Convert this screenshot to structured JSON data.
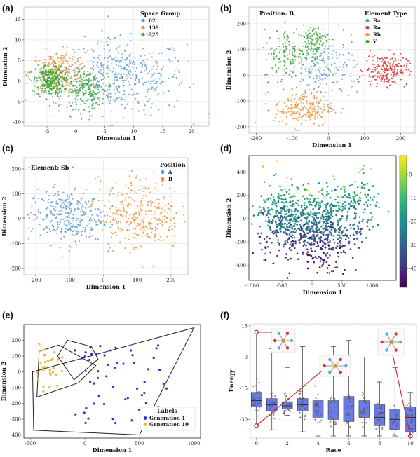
{
  "panels": {
    "a": {
      "label": "(a)"
    },
    "b": {
      "label": "(b)"
    },
    "c": {
      "label": "(c)"
    },
    "d": {
      "label": "(d)"
    },
    "e": {
      "label": "(e)"
    },
    "f": {
      "label": "(f)"
    }
  },
  "chart_data": [
    {
      "id": "a",
      "type": "scatter",
      "xlabel": "Dimension 1",
      "ylabel": "Dimension 2",
      "xlim": [
        -9,
        23
      ],
      "ylim": [
        -11,
        18
      ],
      "xticks": [
        -5,
        0,
        5,
        10,
        15,
        20
      ],
      "yticks": [
        -10,
        -5,
        0,
        5,
        10,
        15
      ],
      "legend": {
        "title": "Space Group",
        "position": "top-right"
      },
      "series": [
        {
          "name": "62",
          "color": "#5b9bd5",
          "clusters": [
            {
              "cx": 8,
              "cy": 1,
              "sx": 5.5,
              "sy": 4.5,
              "n": 420
            }
          ]
        },
        {
          "name": "139",
          "color": "#f0923a",
          "clusters": [
            {
              "cx": -3,
              "cy": 2,
              "sx": 2.5,
              "sy": 2.6,
              "n": 260
            }
          ]
        },
        {
          "name": "225",
          "color": "#3aa53a",
          "clusters": [
            {
              "cx": -4.5,
              "cy": 0,
              "sx": 1.2,
              "sy": 2.0,
              "n": 260
            },
            {
              "cx": 2,
              "cy": -2,
              "sx": 2.3,
              "sy": 2.3,
              "n": 220
            }
          ]
        }
      ]
    },
    {
      "id": "b",
      "type": "scatter",
      "xlabel": "Dimension 1",
      "ylabel": "Dimension 2",
      "annotation": "Position: B",
      "xlim": [
        -220,
        240
      ],
      "ylim": [
        -225,
        265
      ],
      "xticks": [
        -200,
        -100,
        0,
        100,
        200
      ],
      "yticks": [
        -200,
        -100,
        0,
        100,
        200
      ],
      "legend": {
        "title": "Element Type",
        "position": "top-right"
      },
      "series": [
        {
          "name": "Ba",
          "color": "#5b9bd5",
          "clusters": [
            {
              "cx": -10,
              "cy": 20,
              "sx": 45,
              "sy": 60,
              "n": 170
            }
          ]
        },
        {
          "name": "Ru",
          "color": "#d63b3b",
          "clusters": [
            {
              "cx": 160,
              "cy": 20,
              "sx": 30,
              "sy": 30,
              "n": 200
            }
          ]
        },
        {
          "name": "Rb",
          "color": "#f0923a",
          "clusters": [
            {
              "cx": -70,
              "cy": -130,
              "sx": 40,
              "sy": 35,
              "n": 210
            }
          ]
        },
        {
          "name": "Y",
          "color": "#3aa53a",
          "clusters": [
            {
              "cx": -100,
              "cy": 80,
              "sx": 40,
              "sy": 50,
              "n": 160
            },
            {
              "cx": -40,
              "cy": 140,
              "sx": 20,
              "sy": 25,
              "n": 100
            }
          ]
        }
      ]
    },
    {
      "id": "c",
      "type": "scatter",
      "xlabel": "Dimension 1",
      "ylabel": "Dimension 2",
      "annotation": "Element: Sb",
      "xlim": [
        -235,
        250
      ],
      "ylim": [
        -225,
        245
      ],
      "xticks": [
        -200,
        -100,
        0,
        100,
        200
      ],
      "yticks": [
        -200,
        -100,
        0,
        100,
        200
      ],
      "legend": {
        "title": "Position",
        "position": "top-right"
      },
      "series": [
        {
          "name": "A",
          "color": "#5b9bd5",
          "clusters": [
            {
              "cx": -110,
              "cy": 10,
              "sx": 55,
              "sy": 55,
              "n": 330
            }
          ]
        },
        {
          "name": "B",
          "color": "#f0923a",
          "clusters": [
            {
              "cx": 110,
              "cy": 20,
              "sx": 60,
              "sy": 70,
              "n": 330
            }
          ]
        }
      ]
    },
    {
      "id": "d",
      "type": "scatter",
      "xlabel": "Dimension 1",
      "ylabel": "Dimension 2",
      "xlim": [
        -1050,
        1400
      ],
      "ylim": [
        -530,
        540
      ],
      "xticks": [
        -1000,
        -500,
        0,
        500,
        1000
      ],
      "yticks": [
        -400,
        -200,
        0,
        200,
        400
      ],
      "colorbar": {
        "min": -48,
        "max": 8,
        "ticks": [
          0,
          -10,
          -20,
          -30,
          -40
        ],
        "colormap": "viridis"
      },
      "clusters": [
        {
          "cx": -500,
          "cy": 0,
          "sx": 200,
          "sy": 150,
          "n": 330
        },
        {
          "cx": 150,
          "cy": -80,
          "sx": 250,
          "sy": 160,
          "n": 500
        },
        {
          "cx": 700,
          "cy": 100,
          "sx": 200,
          "sy": 150,
          "n": 150
        }
      ]
    },
    {
      "id": "e",
      "type": "scatter",
      "xlabel": "Dimension 1",
      "ylabel": "Dimension 2",
      "xlim": [
        -560,
        1060
      ],
      "ylim": [
        -420,
        300
      ],
      "xticks": [
        -500,
        0,
        500,
        1000
      ],
      "yticks": [
        -400,
        -300,
        -200,
        -100,
        0,
        100,
        200
      ],
      "legend": {
        "title": "Labels",
        "position": "bottom-right"
      },
      "series": [
        {
          "name": "Generation 1",
          "color": "#2f2fd8",
          "n": 55,
          "hull": [
            [
              -470,
              -370
            ],
            [
              500,
              -400
            ],
            [
              1000,
              280
            ],
            [
              -480,
              0
            ]
          ]
        },
        {
          "name": "Generation 10",
          "color": "#f2b43a",
          "n": 30,
          "hull": [
            [
              -440,
              -160
            ],
            [
              -60,
              -70
            ],
            [
              100,
              40
            ],
            [
              -240,
              170
            ],
            [
              -420,
              130
            ]
          ]
        }
      ],
      "inner_hull": [
        [
          -100,
          -50
        ],
        [
          120,
          80
        ],
        [
          60,
          160
        ],
        [
          -160,
          200
        ],
        [
          -250,
          100
        ]
      ]
    },
    {
      "id": "f",
      "type": "box",
      "xlabel": "Race",
      "ylabel": "Energy",
      "xlim": [
        -0.4,
        10.4
      ],
      "ylim": [
        -39,
        16
      ],
      "xticks": [
        0,
        2,
        4,
        6,
        8,
        10
      ],
      "yticks": [
        -30,
        -15,
        0,
        15
      ],
      "categories": [
        0,
        1,
        2,
        3,
        4,
        5,
        6,
        7,
        8,
        9,
        10
      ],
      "boxes": [
        {
          "x": 0,
          "q1": -24,
          "median": -21,
          "q3": -17,
          "wlo": -33,
          "whi": 12
        },
        {
          "x": 1,
          "q1": -26,
          "median": -23,
          "q3": -20,
          "wlo": -35,
          "whi": 4
        },
        {
          "x": 2,
          "q1": -25,
          "median": -23.5,
          "q3": -21.5,
          "wlo": -28,
          "whi": -5
        },
        {
          "x": 3,
          "q1": -26,
          "median": -23,
          "q3": -20,
          "wlo": -36,
          "whi": 5
        },
        {
          "x": 4,
          "q1": -29,
          "median": -26,
          "q3": -21,
          "wlo": -38,
          "whi": 0
        },
        {
          "x": 5,
          "q1": -30,
          "median": -26,
          "q3": -21,
          "wlo": -38,
          "whi": 5
        },
        {
          "x": 6,
          "q1": -31,
          "median": -26,
          "q3": -19,
          "wlo": -38,
          "whi": 8
        },
        {
          "x": 7,
          "q1": -29,
          "median": -26,
          "q3": -21,
          "wlo": -38,
          "whi": 0
        },
        {
          "x": 8,
          "q1": -33,
          "median": -29,
          "q3": -23,
          "wlo": -38,
          "whi": -12
        },
        {
          "x": 9,
          "q1": -35,
          "median": -30,
          "q3": -25,
          "wlo": -38,
          "whi": -5
        },
        {
          "x": 10,
          "q1": -36,
          "median": -29,
          "q3": -24,
          "wlo": -38,
          "whi": -17
        }
      ],
      "highlight_points": [
        {
          "x": 0,
          "y": 12
        },
        {
          "x": 0,
          "y": -33
        },
        {
          "x": 10,
          "y": -38
        }
      ]
    }
  ]
}
